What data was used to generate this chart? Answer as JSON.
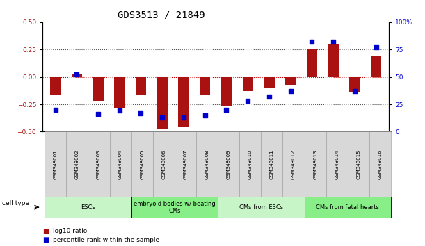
{
  "title": "GDS3513 / 21849",
  "samples": [
    "GSM348001",
    "GSM348002",
    "GSM348003",
    "GSM348004",
    "GSM348005",
    "GSM348006",
    "GSM348007",
    "GSM348008",
    "GSM348009",
    "GSM348010",
    "GSM348011",
    "GSM348012",
    "GSM348013",
    "GSM348014",
    "GSM348015",
    "GSM348016"
  ],
  "log10_ratio": [
    -0.17,
    0.03,
    -0.22,
    -0.29,
    -0.17,
    -0.47,
    -0.46,
    -0.17,
    -0.27,
    -0.13,
    -0.1,
    -0.07,
    0.25,
    0.3,
    -0.14,
    0.19
  ],
  "percentile_rank": [
    20,
    52,
    16,
    19,
    17,
    13,
    13,
    15,
    20,
    28,
    32,
    37,
    82,
    82,
    37,
    77
  ],
  "ylim_left": [
    -0.5,
    0.5
  ],
  "ylim_right": [
    0,
    100
  ],
  "yticks_left": [
    -0.5,
    -0.25,
    0,
    0.25,
    0.5
  ],
  "yticks_right": [
    0,
    25,
    50,
    75,
    100
  ],
  "bar_color": "#AA1111",
  "dot_color": "#0000CC",
  "hline_color": "#CC0000",
  "dotted_line_color": "#555555",
  "title_fontsize": 10,
  "tick_fontsize": 6.5,
  "groups": [
    {
      "label": "ESCs",
      "start": 0,
      "end": 3,
      "color": "#c8f5c8"
    },
    {
      "label": "embryoid bodies w/ beating\nCMs",
      "start": 4,
      "end": 7,
      "color": "#88ee88"
    },
    {
      "label": "CMs from ESCs",
      "start": 8,
      "end": 11,
      "color": "#c8f5c8"
    },
    {
      "label": "CMs from fetal hearts",
      "start": 12,
      "end": 15,
      "color": "#88ee88"
    }
  ]
}
